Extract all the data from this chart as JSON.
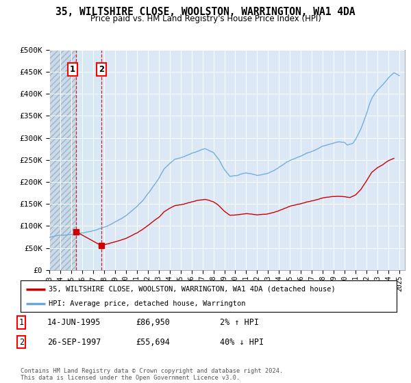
{
  "title": "35, WILTSHIRE CLOSE, WOOLSTON, WARRINGTON, WA1 4DA",
  "subtitle": "Price paid vs. HM Land Registry's House Price Index (HPI)",
  "hpi_color": "#6aa8d8",
  "price_color": "#cc0000",
  "point1_x": 1995.45,
  "point1_price": 86950,
  "point1_label": "1",
  "point1_date": "14-JUN-1995",
  "point1_pct": "2% ↑ HPI",
  "point2_x": 1997.73,
  "point2_price": 55694,
  "point2_label": "2",
  "point2_date": "26-SEP-1997",
  "point2_pct": "40% ↓ HPI",
  "legend_line1": "35, WILTSHIRE CLOSE, WOOLSTON, WARRINGTON, WA1 4DA (detached house)",
  "legend_line2": "HPI: Average price, detached house, Warrington",
  "footer": "Contains HM Land Registry data © Crown copyright and database right 2024.\nThis data is licensed under the Open Government Licence v3.0.",
  "ylim": [
    0,
    500000
  ],
  "yticks": [
    0,
    50000,
    100000,
    150000,
    200000,
    250000,
    300000,
    350000,
    400000,
    450000,
    500000
  ],
  "ytick_labels": [
    "£0",
    "£50K",
    "£100K",
    "£150K",
    "£200K",
    "£250K",
    "£300K",
    "£350K",
    "£400K",
    "£450K",
    "£500K"
  ],
  "xmin": 1993.0,
  "xmax": 2025.5,
  "background_color": "#ffffff",
  "plot_bg_color": "#dce8f5",
  "hatch_color": "#c8d4e8"
}
